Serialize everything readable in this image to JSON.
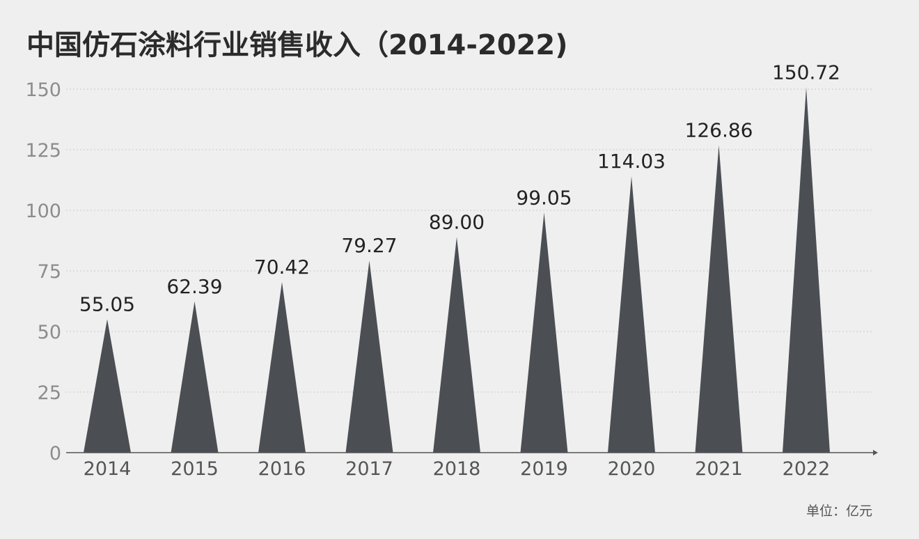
{
  "title": "中国仿石涂料行业销售收入（2014-2022)",
  "unit_label": "单位：亿元",
  "bar_color": "#4b4f54",
  "chart_data": {
    "type": "bar",
    "categories": [
      "2014",
      "2015",
      "2016",
      "2017",
      "2018",
      "2019",
      "2020",
      "2021",
      "2022"
    ],
    "values": [
      55.05,
      62.39,
      70.42,
      79.27,
      89.0,
      99.05,
      114.03,
      126.86,
      150.72
    ],
    "value_labels": [
      "55.05",
      "62.39",
      "70.42",
      "79.27",
      "89.00",
      "99.05",
      "114.03",
      "126.86",
      "150.72"
    ],
    "title": "中国仿石涂料行业销售收入（2014-2022)",
    "xlabel": "",
    "ylabel": "",
    "ylim": [
      0,
      150
    ],
    "yticks": [
      0,
      25,
      50,
      75,
      100,
      125,
      150
    ],
    "grid": true,
    "legend": "none"
  }
}
